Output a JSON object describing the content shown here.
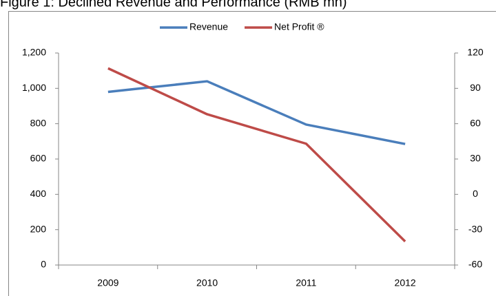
{
  "chart_data": {
    "type": "line",
    "title": "Figure 1: Declined Revenue and Performance (RMB mn)",
    "categories": [
      "2009",
      "2010",
      "2011",
      "2012"
    ],
    "series": [
      {
        "name": "Revenue",
        "color": "#4a7ebb",
        "values": [
          980,
          1040,
          795,
          685
        ]
      },
      {
        "name": "Net Profit ®",
        "color": "#be4b48",
        "axis": "y2",
        "values": [
          107,
          68,
          43,
          -40
        ]
      }
    ],
    "ylim": [
      0,
      1200
    ],
    "yticks": [
      0,
      200,
      400,
      600,
      800,
      {
        "value": 1000,
        "label": "1,000"
      },
      {
        "value": 1200,
        "label": "1,200"
      }
    ],
    "y2lim": [
      -60,
      120
    ],
    "y2ticks": [
      -60,
      -30,
      0,
      30,
      60,
      90,
      120
    ],
    "grid": false,
    "legend": "top"
  }
}
